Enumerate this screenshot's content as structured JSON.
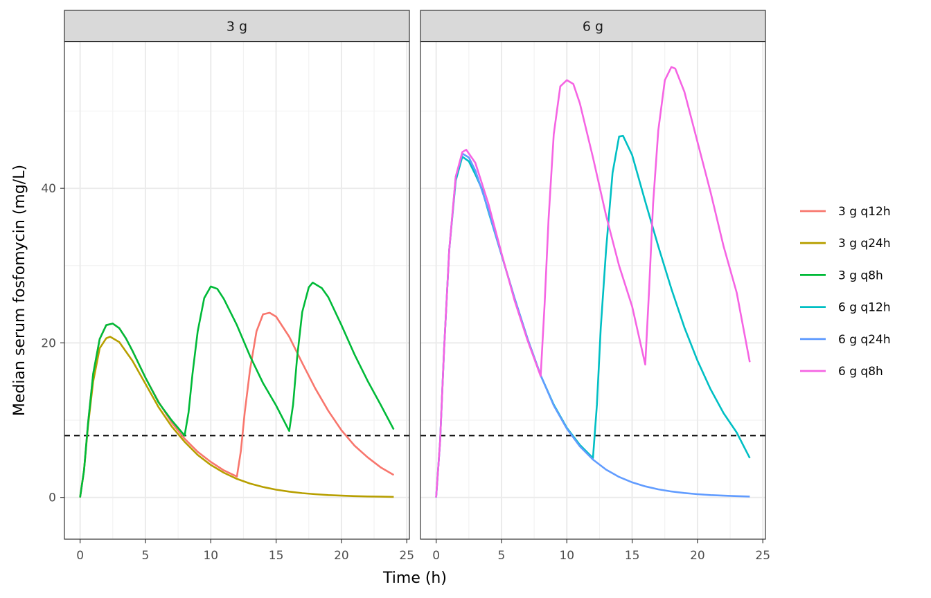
{
  "chart_data": {
    "type": "line",
    "facets": [
      "3 g",
      "6 g"
    ],
    "xlabel": "Time (h)",
    "ylabel": "Median serum fosfomycin (mg/L)",
    "xlim": [
      -1.2,
      25.2
    ],
    "ylim": [
      -5.4,
      59.0
    ],
    "x_ticks": [
      0,
      5,
      10,
      15,
      20,
      25
    ],
    "y_ticks": [
      0,
      20,
      40
    ],
    "grid": true,
    "reference_line": {
      "y": 8,
      "style": "dashed",
      "color": "#000000"
    },
    "legend_position": "right",
    "series": [
      {
        "name": "3 g q12h",
        "facet": "3 g",
        "color": "#F8766D",
        "points": [
          [
            0,
            0
          ],
          [
            0.3,
            3.5
          ],
          [
            0.6,
            9.5
          ],
          [
            1,
            16
          ],
          [
            1.5,
            20.5
          ],
          [
            2,
            22.3
          ],
          [
            2.5,
            22.5
          ],
          [
            3,
            21.9
          ],
          [
            3.5,
            20.6
          ],
          [
            4,
            19
          ],
          [
            5,
            15.5
          ],
          [
            6,
            12.4
          ],
          [
            7,
            9.7
          ],
          [
            8,
            7.6
          ],
          [
            9,
            5.9
          ],
          [
            10,
            4.6
          ],
          [
            11,
            3.5
          ],
          [
            12,
            2.7
          ],
          [
            12.3,
            6
          ],
          [
            12.6,
            11
          ],
          [
            13,
            16.5
          ],
          [
            13.5,
            21.5
          ],
          [
            14,
            23.7
          ],
          [
            14.5,
            23.9
          ],
          [
            15,
            23.4
          ],
          [
            16,
            20.8
          ],
          [
            17,
            17.4
          ],
          [
            18,
            14.1
          ],
          [
            19,
            11.2
          ],
          [
            20,
            8.7
          ],
          [
            21,
            6.7
          ],
          [
            22,
            5.2
          ],
          [
            23,
            3.9
          ],
          [
            24,
            2.9
          ]
        ]
      },
      {
        "name": "3 g q24h",
        "facet": "3 g",
        "color": "#B79F00",
        "points": [
          [
            0,
            0
          ],
          [
            0.3,
            3.5
          ],
          [
            0.6,
            9.2
          ],
          [
            1,
            15
          ],
          [
            1.5,
            19.3
          ],
          [
            2,
            20.6
          ],
          [
            2.3,
            20.8
          ],
          [
            3,
            20.1
          ],
          [
            4,
            17.7
          ],
          [
            5,
            14.7
          ],
          [
            6,
            11.7
          ],
          [
            7,
            9.2
          ],
          [
            8,
            7.2
          ],
          [
            9,
            5.5
          ],
          [
            10,
            4.2
          ],
          [
            11,
            3.2
          ],
          [
            12,
            2.4
          ],
          [
            13,
            1.8
          ],
          [
            14,
            1.35
          ],
          [
            15,
            1
          ],
          [
            16,
            0.75
          ],
          [
            17,
            0.56
          ],
          [
            18,
            0.42
          ],
          [
            19,
            0.31
          ],
          [
            20,
            0.23
          ],
          [
            21,
            0.17
          ],
          [
            22,
            0.13
          ],
          [
            23,
            0.1
          ],
          [
            24,
            0.07
          ]
        ]
      },
      {
        "name": "3 g q8h",
        "facet": "3 g",
        "color": "#00BA38",
        "points": [
          [
            0,
            0
          ],
          [
            0.3,
            3.5
          ],
          [
            0.6,
            9.5
          ],
          [
            1,
            16
          ],
          [
            1.5,
            20.5
          ],
          [
            2,
            22.3
          ],
          [
            2.5,
            22.5
          ],
          [
            3,
            21.9
          ],
          [
            3.5,
            20.6
          ],
          [
            4,
            19
          ],
          [
            5,
            15.5
          ],
          [
            6,
            12.3
          ],
          [
            7,
            10
          ],
          [
            8,
            8
          ],
          [
            8.3,
            11
          ],
          [
            8.6,
            16
          ],
          [
            9,
            21.5
          ],
          [
            9.5,
            25.8
          ],
          [
            10,
            27.3
          ],
          [
            10.5,
            27
          ],
          [
            11,
            25.7
          ],
          [
            12,
            22.3
          ],
          [
            13,
            18.3
          ],
          [
            14,
            14.8
          ],
          [
            15,
            11.9
          ],
          [
            16,
            8.6
          ],
          [
            16.3,
            12
          ],
          [
            16.6,
            18
          ],
          [
            17,
            24
          ],
          [
            17.5,
            27.2
          ],
          [
            17.8,
            27.8
          ],
          [
            18.5,
            27.1
          ],
          [
            19,
            25.9
          ],
          [
            20,
            22.3
          ],
          [
            21,
            18.5
          ],
          [
            22,
            15.1
          ],
          [
            23,
            12
          ],
          [
            24,
            8.8
          ]
        ]
      },
      {
        "name": "6 g q12h",
        "facet": "6 g",
        "color": "#00BFC4",
        "points": [
          [
            0,
            0
          ],
          [
            0.3,
            7.2
          ],
          [
            0.6,
            19
          ],
          [
            1,
            32
          ],
          [
            1.5,
            41
          ],
          [
            2,
            44.1
          ],
          [
            2.5,
            43.5
          ],
          [
            3,
            41.8
          ],
          [
            3.5,
            39.9
          ],
          [
            4,
            37
          ],
          [
            5,
            31.4
          ],
          [
            6,
            25.8
          ],
          [
            7,
            20.5
          ],
          [
            8,
            15.8
          ],
          [
            9,
            12
          ],
          [
            10,
            9
          ],
          [
            11,
            6.8
          ],
          [
            12,
            5.1
          ],
          [
            12.3,
            12
          ],
          [
            12.6,
            22
          ],
          [
            13,
            32
          ],
          [
            13.5,
            42
          ],
          [
            14,
            46.7
          ],
          [
            14.3,
            46.8
          ],
          [
            15,
            44.3
          ],
          [
            16,
            38.3
          ],
          [
            17,
            32.5
          ],
          [
            18,
            27
          ],
          [
            19,
            22
          ],
          [
            20,
            17.7
          ],
          [
            21,
            14
          ],
          [
            22,
            10.9
          ],
          [
            23,
            8.4
          ],
          [
            24,
            5.1
          ]
        ]
      },
      {
        "name": "6 g q24h",
        "facet": "6 g",
        "color": "#619CFF",
        "points": [
          [
            0,
            0
          ],
          [
            0.3,
            7.2
          ],
          [
            0.6,
            19
          ],
          [
            1,
            32
          ],
          [
            1.5,
            41.5
          ],
          [
            2,
            44.5
          ],
          [
            2.5,
            44
          ],
          [
            3,
            42.3
          ],
          [
            4,
            37.2
          ],
          [
            5,
            31.4
          ],
          [
            6,
            25.8
          ],
          [
            7,
            20.5
          ],
          [
            8,
            15.8
          ],
          [
            9,
            11.9
          ],
          [
            10,
            8.9
          ],
          [
            11,
            6.6
          ],
          [
            12,
            4.9
          ],
          [
            13,
            3.6
          ],
          [
            14,
            2.65
          ],
          [
            15,
            1.95
          ],
          [
            16,
            1.43
          ],
          [
            17,
            1.05
          ],
          [
            18,
            0.77
          ],
          [
            19,
            0.57
          ],
          [
            20,
            0.42
          ],
          [
            21,
            0.31
          ],
          [
            22,
            0.23
          ],
          [
            23,
            0.17
          ],
          [
            24,
            0.12
          ]
        ]
      },
      {
        "name": "6 g q8h",
        "facet": "6 g",
        "color": "#F564E3",
        "points": [
          [
            0,
            0
          ],
          [
            0.3,
            7.2
          ],
          [
            0.6,
            19
          ],
          [
            1,
            32
          ],
          [
            1.5,
            41.5
          ],
          [
            2,
            44.7
          ],
          [
            2.3,
            45
          ],
          [
            3,
            43.3
          ],
          [
            4,
            38
          ],
          [
            5,
            31.6
          ],
          [
            6,
            25.5
          ],
          [
            7,
            20.3
          ],
          [
            8,
            15.7
          ],
          [
            8.3,
            25
          ],
          [
            8.6,
            36
          ],
          [
            9,
            47
          ],
          [
            9.5,
            53.2
          ],
          [
            10,
            54
          ],
          [
            10.5,
            53.5
          ],
          [
            11,
            51
          ],
          [
            12,
            44
          ],
          [
            13,
            36.5
          ],
          [
            14,
            30
          ],
          [
            15,
            24.7
          ],
          [
            16,
            17.2
          ],
          [
            16.3,
            27
          ],
          [
            16.6,
            38
          ],
          [
            17,
            47.5
          ],
          [
            17.5,
            54
          ],
          [
            18,
            55.7
          ],
          [
            18.3,
            55.5
          ],
          [
            19,
            52.5
          ],
          [
            20,
            46
          ],
          [
            21,
            39.5
          ],
          [
            22,
            32.5
          ],
          [
            23,
            26.5
          ],
          [
            24,
            17.5
          ]
        ]
      }
    ]
  }
}
